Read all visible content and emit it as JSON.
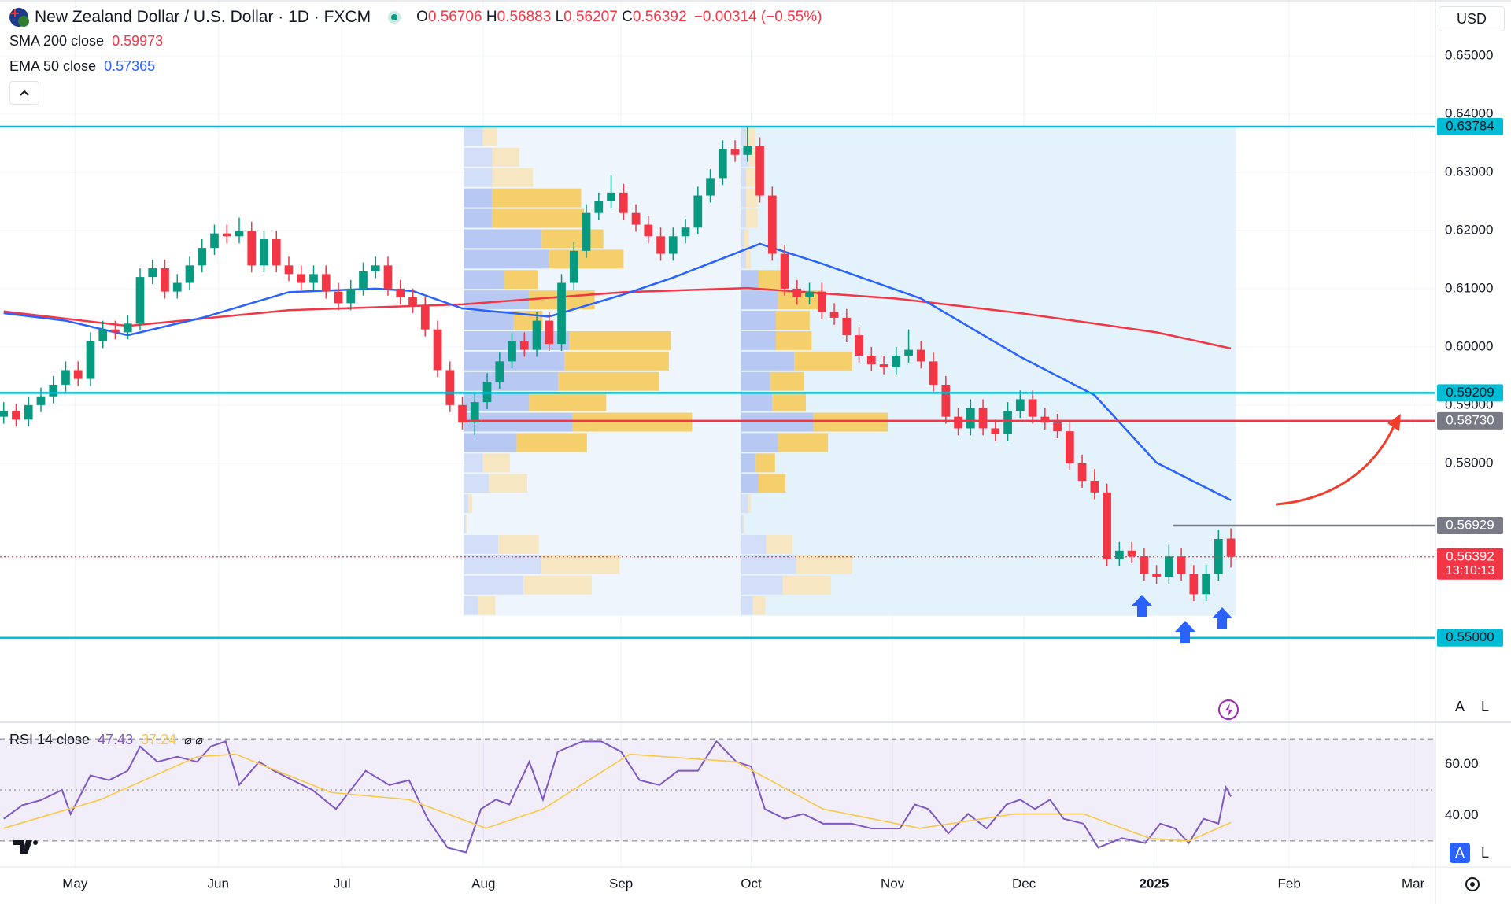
{
  "chart_data": {
    "type": "candlestick",
    "title": "New Zealand Dollar / U.S. Dollar · 1D · FXCM",
    "ohlc_legend": {
      "labels": [
        "O",
        "H",
        "L",
        "C"
      ],
      "values": [
        0.56706,
        0.56883,
        0.56207,
        0.56392
      ],
      "change": "−0.00314 (−0.55%)"
    },
    "currency": "USD",
    "buttons": [
      "A",
      "L"
    ],
    "up_color": "#089981",
    "down_color": "#f23645",
    "candles": [
      [
        0.588,
        0.5905,
        0.5868,
        0.589
      ],
      [
        0.589,
        0.5902,
        0.5863,
        0.5875
      ],
      [
        0.5875,
        0.5915,
        0.5863,
        0.59
      ],
      [
        0.59,
        0.593,
        0.5888,
        0.5915
      ],
      [
        0.5915,
        0.595,
        0.5903,
        0.5935
      ],
      [
        0.5935,
        0.5975,
        0.5923,
        0.596
      ],
      [
        0.596,
        0.5975,
        0.5933,
        0.5945
      ],
      [
        0.5945,
        0.6025,
        0.5933,
        0.601
      ],
      [
        0.601,
        0.6045,
        0.5998,
        0.603
      ],
      [
        0.603,
        0.6045,
        0.6013,
        0.6025
      ],
      [
        0.6025,
        0.6055,
        0.6013,
        0.604
      ],
      [
        0.604,
        0.6135,
        0.6028,
        0.612
      ],
      [
        0.612,
        0.615,
        0.6108,
        0.6135
      ],
      [
        0.6135,
        0.615,
        0.6083,
        0.6095
      ],
      [
        0.6095,
        0.6125,
        0.6083,
        0.611
      ],
      [
        0.611,
        0.6155,
        0.6098,
        0.614
      ],
      [
        0.614,
        0.6185,
        0.6128,
        0.617
      ],
      [
        0.617,
        0.621,
        0.6158,
        0.6195
      ],
      [
        0.6195,
        0.621,
        0.6178,
        0.619
      ],
      [
        0.619,
        0.6222,
        0.6178,
        0.62
      ],
      [
        0.62,
        0.6215,
        0.6128,
        0.614
      ],
      [
        0.614,
        0.62,
        0.6128,
        0.6185
      ],
      [
        0.6185,
        0.62,
        0.6128,
        0.614
      ],
      [
        0.614,
        0.6155,
        0.6113,
        0.6125
      ],
      [
        0.6125,
        0.614,
        0.6098,
        0.611
      ],
      [
        0.611,
        0.614,
        0.6098,
        0.6125
      ],
      [
        0.6125,
        0.614,
        0.6083,
        0.6095
      ],
      [
        0.6095,
        0.611,
        0.6063,
        0.6075
      ],
      [
        0.6075,
        0.6115,
        0.6063,
        0.61
      ],
      [
        0.61,
        0.6145,
        0.6088,
        0.613
      ],
      [
        0.613,
        0.6155,
        0.6118,
        0.614
      ],
      [
        0.614,
        0.6155,
        0.6088,
        0.61
      ],
      [
        0.61,
        0.6115,
        0.6073,
        0.6085
      ],
      [
        0.6085,
        0.61,
        0.6058,
        0.607
      ],
      [
        0.607,
        0.6085,
        0.6018,
        0.603
      ],
      [
        0.603,
        0.6045,
        0.5948,
        0.596
      ],
      [
        0.596,
        0.5975,
        0.5888,
        0.59
      ],
      [
        0.59,
        0.5915,
        0.5858,
        0.587
      ],
      [
        0.587,
        0.592,
        0.5848,
        0.5905
      ],
      [
        0.5905,
        0.5955,
        0.5893,
        0.594
      ],
      [
        0.594,
        0.599,
        0.5928,
        0.5975
      ],
      [
        0.5975,
        0.6025,
        0.5963,
        0.601
      ],
      [
        0.601,
        0.6025,
        0.5983,
        0.5995
      ],
      [
        0.5995,
        0.606,
        0.5983,
        0.6045
      ],
      [
        0.6045,
        0.606,
        0.5993,
        0.6005
      ],
      [
        0.6005,
        0.6125,
        0.5993,
        0.611
      ],
      [
        0.611,
        0.618,
        0.6098,
        0.6165
      ],
      [
        0.6165,
        0.6245,
        0.6153,
        0.623
      ],
      [
        0.623,
        0.6265,
        0.6218,
        0.625
      ],
      [
        0.625,
        0.6295,
        0.6238,
        0.6265
      ],
      [
        0.6265,
        0.628,
        0.6218,
        0.623
      ],
      [
        0.623,
        0.6245,
        0.6198,
        0.621
      ],
      [
        0.621,
        0.6225,
        0.6178,
        0.619
      ],
      [
        0.619,
        0.6205,
        0.6148,
        0.616
      ],
      [
        0.616,
        0.6205,
        0.6148,
        0.619
      ],
      [
        0.619,
        0.622,
        0.6178,
        0.6205
      ],
      [
        0.6205,
        0.6275,
        0.6193,
        0.626
      ],
      [
        0.626,
        0.6305,
        0.6248,
        0.629
      ],
      [
        0.629,
        0.6355,
        0.6278,
        0.634
      ],
      [
        0.634,
        0.6355,
        0.6318,
        0.633
      ],
      [
        0.633,
        0.6378,
        0.6318,
        0.6345
      ],
      [
        0.6345,
        0.636,
        0.6248,
        0.626
      ],
      [
        0.626,
        0.6275,
        0.6148,
        0.616
      ],
      [
        0.616,
        0.6175,
        0.6088,
        0.61
      ],
      [
        0.61,
        0.6115,
        0.6073,
        0.6085
      ],
      [
        0.6085,
        0.611,
        0.6073,
        0.6095
      ],
      [
        0.6095,
        0.611,
        0.6048,
        0.606
      ],
      [
        0.606,
        0.6075,
        0.6038,
        0.605
      ],
      [
        0.605,
        0.6065,
        0.6008,
        0.602
      ],
      [
        0.602,
        0.6035,
        0.5973,
        0.5985
      ],
      [
        0.5985,
        0.6,
        0.5958,
        0.597
      ],
      [
        0.597,
        0.5985,
        0.5953,
        0.5965
      ],
      [
        0.5965,
        0.6,
        0.5953,
        0.5985
      ],
      [
        0.5985,
        0.603,
        0.5973,
        0.5995
      ],
      [
        0.5995,
        0.601,
        0.5963,
        0.5975
      ],
      [
        0.5975,
        0.599,
        0.5923,
        0.5935
      ],
      [
        0.5935,
        0.595,
        0.5868,
        0.588
      ],
      [
        0.588,
        0.5895,
        0.5848,
        0.586
      ],
      [
        0.586,
        0.591,
        0.5848,
        0.5895
      ],
      [
        0.5895,
        0.591,
        0.5848,
        0.586
      ],
      [
        0.586,
        0.5875,
        0.5838,
        0.585
      ],
      [
        0.585,
        0.5905,
        0.5838,
        0.589
      ],
      [
        0.589,
        0.5925,
        0.5878,
        0.591
      ],
      [
        0.591,
        0.5925,
        0.5868,
        0.588
      ],
      [
        0.588,
        0.5895,
        0.5858,
        0.587
      ],
      [
        0.587,
        0.5885,
        0.5843,
        0.5855
      ],
      [
        0.5855,
        0.587,
        0.5788,
        0.58
      ],
      [
        0.58,
        0.5815,
        0.5758,
        0.577
      ],
      [
        0.577,
        0.579,
        0.5738,
        0.575
      ],
      [
        0.575,
        0.5765,
        0.5623,
        0.5635
      ],
      [
        0.5635,
        0.5665,
        0.5623,
        0.565
      ],
      [
        0.565,
        0.5665,
        0.5628,
        0.564
      ],
      [
        0.564,
        0.5655,
        0.5598,
        0.561
      ],
      [
        0.561,
        0.5625,
        0.5593,
        0.5605
      ],
      [
        0.5605,
        0.566,
        0.5593,
        0.564
      ],
      [
        0.564,
        0.5655,
        0.5598,
        0.561
      ],
      [
        0.561,
        0.5625,
        0.5563,
        0.5575
      ],
      [
        0.5575,
        0.5625,
        0.5563,
        0.561
      ],
      [
        0.561,
        0.5685,
        0.5598,
        0.567
      ],
      [
        0.56706,
        0.56883,
        0.56207,
        0.56392
      ]
    ],
    "xlim": [
      -0.3,
      115.5
    ],
    "xticks": [
      {
        "value": 5.75,
        "label": "May"
      },
      {
        "value": 17.3,
        "label": "Jun"
      },
      {
        "value": 27.3,
        "label": "Jul"
      },
      {
        "value": 38.7,
        "label": "Aug"
      },
      {
        "value": 49.8,
        "label": "Sep"
      },
      {
        "value": 60.3,
        "label": "Oct"
      },
      {
        "value": 71.7,
        "label": "Nov"
      },
      {
        "value": 82.3,
        "label": "Dec"
      },
      {
        "value": 92.8,
        "label": "2025"
      },
      {
        "value": 103.7,
        "label": "Feb"
      },
      {
        "value": 113.7,
        "label": "Mar"
      }
    ],
    "ylim": [
      0.5355,
      0.6596
    ],
    "yticks": [
      {
        "value": 0.65,
        "label": "0.65000"
      },
      {
        "value": 0.64,
        "label": "0.64000"
      },
      {
        "value": 0.63,
        "label": "0.63000"
      },
      {
        "value": 0.62,
        "label": "0.62000"
      },
      {
        "value": 0.61,
        "label": "0.61000"
      },
      {
        "value": 0.6,
        "label": "0.60000"
      },
      {
        "value": 0.59,
        "label": "0.59000"
      },
      {
        "value": 0.58,
        "label": "0.58000"
      }
    ],
    "grid": true,
    "series": [
      {
        "name": "SMA 200 close",
        "color": "#f23645",
        "x": [
          0,
          10,
          23,
          37,
          50,
          60,
          72,
          82,
          93,
          99
        ],
        "values": [
          0.6061,
          0.6036,
          0.6063,
          0.6073,
          0.6094,
          0.6101,
          0.6083,
          0.6058,
          0.6025,
          0.59973
        ]
      },
      {
        "name": "EMA 50 close",
        "color": "#2962ff",
        "x": [
          0,
          5,
          10,
          16,
          23,
          30,
          33,
          37,
          44,
          50,
          54,
          61,
          66,
          74,
          82,
          88,
          93,
          99
        ],
        "values": [
          0.6058,
          0.6045,
          0.602,
          0.605,
          0.6094,
          0.61,
          0.6096,
          0.6066,
          0.6052,
          0.609,
          0.6119,
          0.6177,
          0.6143,
          0.6083,
          0.5983,
          0.5917,
          0.5801,
          0.57365
        ]
      }
    ],
    "levels": [
      {
        "price": 0.63784,
        "color": "#00bcd4",
        "label_color": "#00bcd4"
      },
      {
        "price": 0.59209,
        "color": "#00bcd4",
        "label_color": "#00bcd4"
      },
      {
        "price": {
          "value": 0.5873,
          "label": "0.58730"
        },
        "color": "#f23645",
        "label_color": "#787b86",
        "start": 37.1
      },
      {
        "price": 0.56929,
        "color": "#787b86",
        "label_color": "#787b86",
        "start": 94.3
      },
      {
        "price": 0.56392,
        "color": "#f23645",
        "label_color": "#f23645",
        "style": "dotted",
        "countdown": "13:10:13"
      },
      {
        "price": {
          "value": 0.55,
          "label": "0.55000"
        },
        "color": "#00bcd4",
        "label_color": "#00bcd4"
      }
    ],
    "volume_profiles": [
      {
        "start": 37.1,
        "end": 59.5,
        "top": 0.63784,
        "bottom": 0.5538,
        "value_area_rows": [
          3,
          15
        ],
        "rows": [
          [
            20,
            15
          ],
          [
            30,
            28
          ],
          [
            30,
            42
          ],
          [
            30,
            92
          ],
          [
            30,
            95
          ],
          [
            81,
            64
          ],
          [
            89,
            77
          ],
          [
            42,
            35
          ],
          [
            68,
            68
          ],
          [
            52,
            30
          ],
          [
            110,
            105
          ],
          [
            105,
            108
          ],
          [
            98,
            105
          ],
          [
            68,
            80
          ],
          [
            113,
            124
          ],
          [
            55,
            73
          ],
          [
            20,
            28
          ],
          [
            26,
            40
          ],
          [
            5,
            4
          ],
          [
            2,
            1
          ],
          [
            36,
            42
          ],
          [
            80,
            82
          ],
          [
            62,
            71
          ],
          [
            15,
            18
          ]
        ]
      },
      {
        "start": 59.5,
        "end": 99.4,
        "top": 0.63784,
        "bottom": 0.5538,
        "value_area_rows": [
          7,
          17
        ],
        "rows": [
          [
            5,
            10
          ],
          [
            8,
            12
          ],
          [
            5,
            10
          ],
          [
            5,
            12
          ],
          [
            5,
            12
          ],
          [
            3,
            5
          ],
          [
            5,
            5
          ],
          [
            18,
            25
          ],
          [
            38,
            46
          ],
          [
            36,
            35
          ],
          [
            36,
            37
          ],
          [
            55,
            60
          ],
          [
            30,
            35
          ],
          [
            32,
            35
          ],
          [
            75,
            77
          ],
          [
            38,
            52
          ],
          [
            15,
            20
          ],
          [
            18,
            28
          ],
          [
            7,
            3
          ],
          [
            2,
            1
          ],
          [
            26,
            27
          ],
          [
            57,
            58
          ],
          [
            43,
            50
          ],
          [
            12,
            13
          ]
        ]
      }
    ],
    "rsi": {
      "name": "RSI 14 close",
      "ylim": [
        19.8,
        76.5
      ],
      "yticks": [
        {
          "value": 60,
          "label": "60.00"
        },
        {
          "value": 40,
          "label": "40.00"
        }
      ],
      "bands": [
        70,
        50,
        30
      ],
      "series": [
        {
          "color": "#7e57c2",
          "x": [
            0,
            1.5,
            3,
            4.7,
            5.4,
            7,
            8.5,
            10,
            11,
            12.4,
            14,
            15.6,
            16.7,
            17.9,
            19,
            20.6,
            21.8,
            23.3,
            24.9,
            26.8,
            29.2,
            31.1,
            32.7,
            34.2,
            35.8,
            37.3,
            38.5,
            39.7,
            40.8,
            42.4,
            43.5,
            44.7,
            46.7,
            48.2,
            49.8,
            51.3,
            52.9,
            54.4,
            56,
            57.5,
            59.1,
            60.3,
            61.4,
            63,
            64.5,
            66.1,
            68.4,
            70,
            72.3,
            73.5,
            74.6,
            76.2,
            77.8,
            79.3,
            80.9,
            82,
            83.2,
            84.4,
            85.5,
            87.1,
            88.3,
            90.2,
            92.1,
            93.3,
            94.5,
            95.6,
            96.8,
            98,
            98.6,
            99
          ],
          "values": [
            38.7,
            44,
            46,
            50,
            40.5,
            55.7,
            53.8,
            57.5,
            67,
            61,
            63,
            61,
            67,
            69,
            52,
            61,
            57.5,
            53.8,
            50,
            42.5,
            57.5,
            51.9,
            53.8,
            38.7,
            27.4,
            25.5,
            42.5,
            46.2,
            44.3,
            61,
            46.2,
            65,
            69,
            69,
            65,
            53.8,
            51.9,
            57.5,
            57.5,
            69,
            61,
            59.2,
            42.5,
            38.7,
            40.6,
            36.8,
            36.8,
            34.9,
            34.9,
            44.3,
            42.5,
            33,
            40.6,
            34.9,
            44.3,
            46.2,
            42.5,
            46.2,
            38.7,
            36.8,
            27.4,
            31.1,
            29.2,
            36.8,
            34.9,
            29.2,
            38.7,
            36.8,
            51,
            47.43
          ]
        },
        {
          "color": "#f7c948",
          "x": [
            0,
            7.8,
            15.6,
            18.7,
            26.4,
            32.7,
            38.9,
            43.5,
            50.5,
            59.1,
            66.1,
            73.9,
            81.6,
            87.1,
            92.5,
            95.6,
            99
          ],
          "values": [
            35,
            46.2,
            63,
            64,
            49,
            46.2,
            35,
            42.5,
            64,
            61,
            42.5,
            35,
            40.6,
            40.6,
            31,
            30,
            37.24
          ]
        }
      ]
    }
  }
}
